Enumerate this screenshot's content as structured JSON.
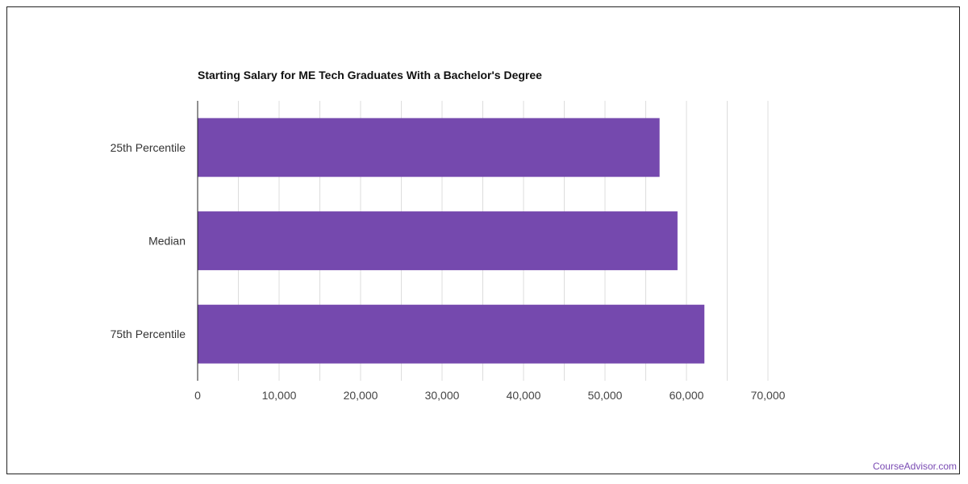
{
  "chart_data": {
    "type": "bar",
    "orientation": "horizontal",
    "title": "Starting Salary for ME Tech Graduates With a Bachelor's Degree",
    "categories": [
      "25th Percentile",
      "Median",
      "75th Percentile"
    ],
    "values": [
      56700,
      58900,
      62200
    ],
    "xlim": [
      0,
      70000
    ],
    "xticks": [
      0,
      10000,
      20000,
      30000,
      40000,
      50000,
      60000,
      70000
    ],
    "xtick_labels": [
      "0",
      "10,000",
      "20,000",
      "30,000",
      "40,000",
      "50,000",
      "60,000",
      "70,000"
    ],
    "grid": true,
    "bar_color": "#7549ae",
    "grid_color": "#dddddd",
    "axis_color": "#222222"
  },
  "footer": {
    "watermark": "CourseAdvisor.com"
  }
}
